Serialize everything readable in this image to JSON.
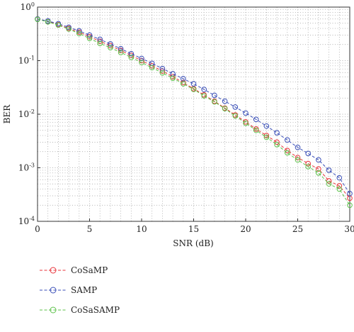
{
  "chart_data": {
    "type": "line",
    "xlabel": "SNR (dB)",
    "ylabel": "BER",
    "xlim": [
      0,
      30
    ],
    "ylim": [
      0.0001,
      1
    ],
    "yscale": "log",
    "grid": true,
    "legend_position": "bottom-left, below plot",
    "x_ticks": [
      0,
      5,
      10,
      15,
      20,
      25,
      30
    ],
    "x_tick_labels": [
      "0",
      "5",
      "10",
      "15",
      "20",
      "25",
      "30"
    ],
    "y_tick_labels": [
      {
        "base": "10",
        "exp": "0"
      },
      {
        "base": "10",
        "exp": "-1"
      },
      {
        "base": "10",
        "exp": "-2"
      },
      {
        "base": "10",
        "exp": "-3"
      },
      {
        "base": "10",
        "exp": "-4"
      }
    ],
    "x": [
      0,
      1,
      2,
      3,
      4,
      5,
      6,
      7,
      8,
      9,
      10,
      11,
      12,
      13,
      14,
      15,
      16,
      17,
      18,
      19,
      20,
      21,
      22,
      23,
      24,
      25,
      26,
      27,
      28,
      29,
      30
    ],
    "series": [
      {
        "name": "CoSaMP",
        "color": "#e8333a",
        "values": [
          0.6,
          0.54,
          0.47,
          0.4,
          0.34,
          0.28,
          0.23,
          0.19,
          0.155,
          0.125,
          0.1,
          0.08,
          0.064,
          0.05,
          0.039,
          0.03,
          0.023,
          0.0175,
          0.013,
          0.0097,
          0.0072,
          0.0053,
          0.004,
          0.003,
          0.0021,
          0.00155,
          0.0012,
          0.00095,
          0.00057,
          0.00046,
          0.00027
        ]
      },
      {
        "name": "SAMP",
        "color": "#3a4fb8",
        "values": [
          0.6,
          0.55,
          0.49,
          0.42,
          0.36,
          0.3,
          0.25,
          0.205,
          0.167,
          0.135,
          0.11,
          0.089,
          0.071,
          0.057,
          0.046,
          0.037,
          0.029,
          0.0225,
          0.0175,
          0.0136,
          0.0105,
          0.008,
          0.006,
          0.0045,
          0.0033,
          0.0024,
          0.00185,
          0.0014,
          0.0009,
          0.00065,
          0.00033
        ]
      },
      {
        "name": "CoSaSAMP",
        "color": "#5cc24a",
        "values": [
          0.59,
          0.53,
          0.46,
          0.39,
          0.32,
          0.26,
          0.21,
          0.175,
          0.142,
          0.115,
          0.092,
          0.074,
          0.059,
          0.047,
          0.037,
          0.029,
          0.022,
          0.017,
          0.0127,
          0.0093,
          0.0068,
          0.005,
          0.0037,
          0.0027,
          0.0019,
          0.0014,
          0.00105,
          0.0008,
          0.0005,
          0.0004,
          0.0002
        ]
      }
    ]
  }
}
